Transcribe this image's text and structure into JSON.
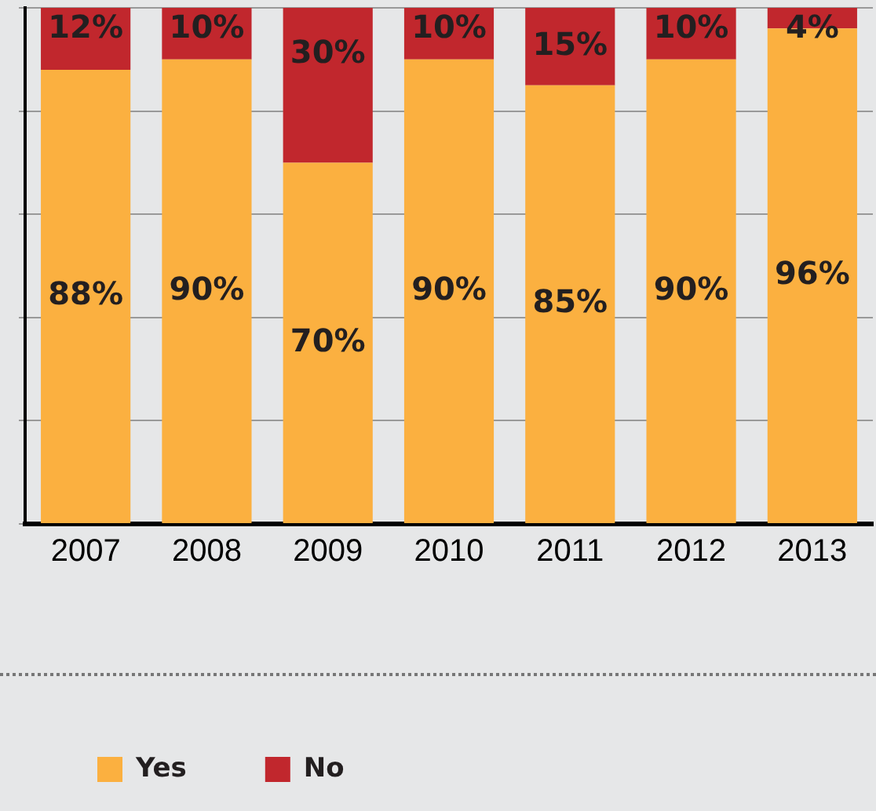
{
  "chart_data": {
    "type": "bar",
    "stacked": true,
    "categories": [
      "2007",
      "2008",
      "2009",
      "2010",
      "2011",
      "2012",
      "2013"
    ],
    "series": [
      {
        "name": "Yes",
        "color": "#fbb040",
        "values": [
          88,
          90,
          70,
          90,
          85,
          90,
          96
        ],
        "value_labels": [
          "88%",
          "90%",
          "70%",
          "90%",
          "85%",
          "90%",
          "96%"
        ]
      },
      {
        "name": "No",
        "color": "#c1272d",
        "values": [
          12,
          10,
          30,
          10,
          15,
          10,
          4
        ],
        "value_labels": [
          "12%",
          "10%",
          "30%",
          "10%",
          "15%",
          "10%",
          "4%"
        ]
      }
    ],
    "ylim": [
      0,
      100
    ],
    "yticks": [
      {
        "value": 0,
        "label": null
      },
      {
        "value": 20,
        "label": null
      },
      {
        "value": 40,
        "label": null
      },
      {
        "value": 60,
        "label": null
      },
      {
        "value": 80,
        "label": null
      },
      {
        "value": 100,
        "label": null
      }
    ],
    "tick_labels": "x",
    "grid": "y",
    "legend": "bottom left"
  }
}
